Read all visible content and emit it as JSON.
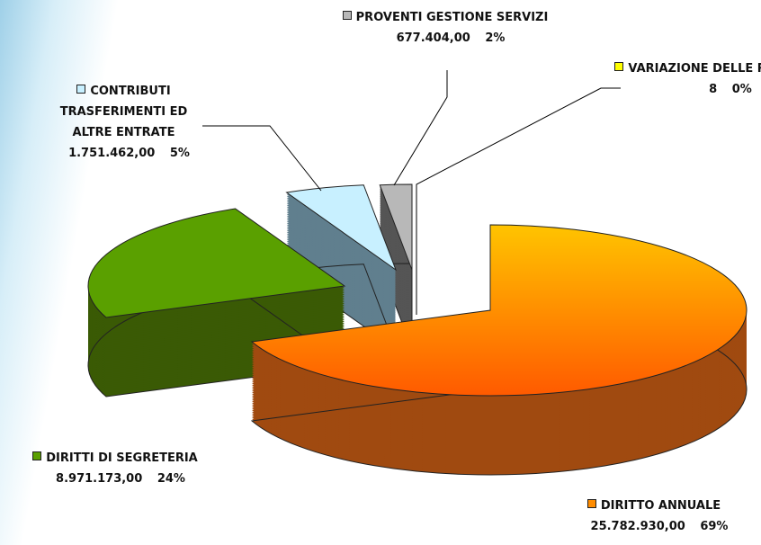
{
  "chart_data": {
    "type": "pie3d",
    "categories": [
      "DIRITTO ANNUALE",
      "DIRITTI DI SEGRETERIA",
      "CONTRIBUTI TRASFERIMENTI ED ALTRE ENTRATE",
      "PROVENTI GESTIONE SERVIZI",
      "VARIAZIONE DELLE RIMANENZE"
    ],
    "amounts": [
      "25.782.930,00",
      "8.971.173,00",
      "1.751.462,00",
      "677.404,00",
      "8"
    ],
    "values": [
      69,
      24,
      5,
      2,
      0
    ],
    "value_labels": [
      "69%",
      "24%",
      "5%",
      "2%",
      "0%"
    ],
    "colors": [
      "#ff8c00",
      "#5aa000",
      "#c8f0ff",
      "#b8b8b8",
      "#ffff00"
    ],
    "side_colors": [
      "#a04a10",
      "#3a5a05",
      "#607f8e",
      "#555555",
      "#999900"
    ]
  }
}
